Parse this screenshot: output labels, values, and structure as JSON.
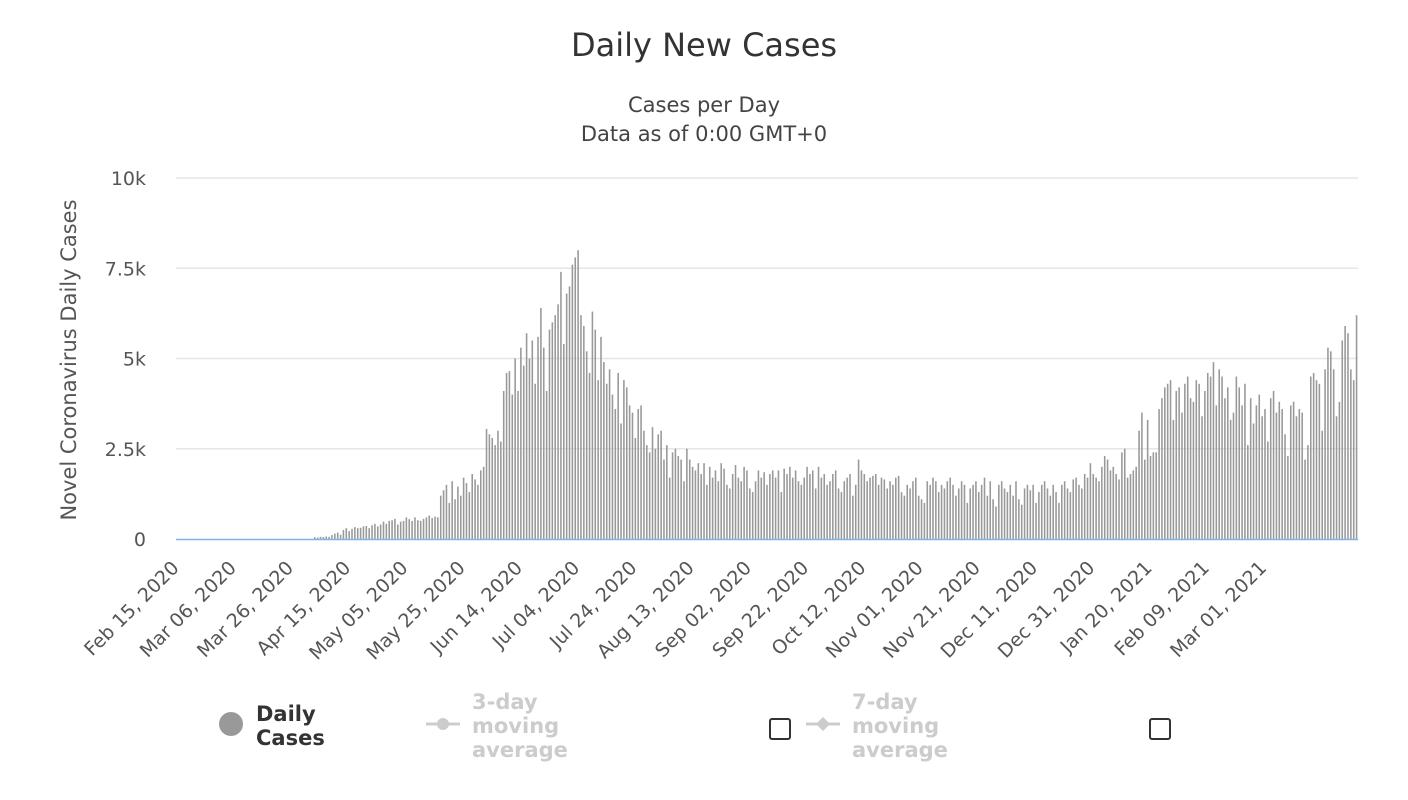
{
  "chart_data": {
    "type": "bar",
    "title": "Daily New Cases",
    "subtitle": [
      "Cases per Day",
      "Data as of 0:00 GMT+0"
    ],
    "ylabel": "Novel Coronavirus Daily Cases",
    "ylim": [
      0,
      10000
    ],
    "y_ticks": [
      {
        "value": 0,
        "label": "0"
      },
      {
        "value": 2500,
        "label": "2.5k"
      },
      {
        "value": 5000,
        "label": "5k"
      },
      {
        "value": 7500,
        "label": "7.5k"
      },
      {
        "value": 10000,
        "label": "10k"
      }
    ],
    "x_tick_labels": [
      "Feb 15, 2020",
      "Mar 06, 2020",
      "Mar 26, 2020",
      "Apr 15, 2020",
      "May 05, 2020",
      "May 25, 2020",
      "Jun 14, 2020",
      "Jul 04, 2020",
      "Jul 24, 2020",
      "Aug 13, 2020",
      "Sep 02, 2020",
      "Sep 22, 2020",
      "Oct 12, 2020",
      "Nov 01, 2020",
      "Nov 21, 2020",
      "Dec 11, 2020",
      "Dec 31, 2020",
      "Jan 20, 2021",
      "Feb 09, 2021",
      "Mar 01, 2021"
    ],
    "x_start": "Feb 15, 2020",
    "x_end": "Mar 21, 2021",
    "grid": true,
    "legend_position": "bottom",
    "colors": {
      "bars": "#999999",
      "zero_line": "#7cb5ec",
      "grid": "#e6e6e6"
    },
    "series": [
      {
        "name": "Daily Cases",
        "values": [
          0,
          0,
          0,
          0,
          0,
          0,
          0,
          0,
          0,
          0,
          0,
          0,
          0,
          0,
          0,
          0,
          0,
          0,
          0,
          0,
          0,
          0,
          0,
          0,
          0,
          0,
          0,
          0,
          0,
          0,
          0,
          0,
          0,
          0,
          0,
          0,
          0,
          0,
          0,
          0,
          0,
          0,
          0,
          0,
          0,
          0,
          0,
          0,
          50,
          40,
          60,
          55,
          70,
          60,
          110,
          150,
          180,
          120,
          250,
          300,
          220,
          280,
          330,
          300,
          310,
          350,
          360,
          300,
          380,
          420,
          350,
          400,
          480,
          420,
          500,
          520,
          560,
          400,
          480,
          500,
          600,
          550,
          500,
          600,
          520,
          500,
          560,
          600,
          650,
          580,
          620,
          600,
          1200,
          1350,
          1500,
          1000,
          1600,
          1100,
          1450,
          1200,
          1700,
          1550,
          1300,
          1800,
          1650,
          1500,
          1900,
          2000,
          3050,
          2900,
          2800,
          2600,
          3000,
          2700,
          4100,
          4600,
          4650,
          4000,
          5000,
          4100,
          5300,
          4800,
          5700,
          5000,
          5500,
          4300,
          5600,
          6400,
          5300,
          4100,
          5800,
          6000,
          6200,
          6500,
          7400,
          5400,
          6800,
          7000,
          7600,
          7800,
          8000,
          6200,
          5900,
          5200,
          4600,
          6300,
          5800,
          4400,
          5600,
          4900,
          4300,
          4700,
          4000,
          3600,
          4600,
          3200,
          4400,
          4200,
          3700,
          3500,
          2800,
          3600,
          3700,
          3000,
          2600,
          2400,
          3100,
          2500,
          2900,
          3000,
          2200,
          2600,
          1700,
          2400,
          2500,
          2300,
          2200,
          1600,
          2500,
          2200,
          2000,
          1900,
          2100,
          1800,
          2100,
          1500,
          2000,
          1700,
          1900,
          1600,
          2100,
          1950,
          1500,
          1400,
          1800,
          2050,
          1700,
          1600,
          2000,
          1900,
          1400,
          1300,
          1600,
          1900,
          1700,
          1850,
          1500,
          1800,
          1900,
          1700,
          1900,
          1300,
          1950,
          1800,
          2000,
          1700,
          1900,
          1600,
          1500,
          1700,
          2000,
          1800,
          1900,
          1400,
          2000,
          1700,
          1800,
          1500,
          1600,
          1800,
          1900,
          1400,
          1300,
          1600,
          1700,
          1800,
          1200,
          1500,
          2200,
          1900,
          1800,
          1600,
          1700,
          1750,
          1800,
          1500,
          1700,
          1650,
          1400,
          1600,
          1500,
          1700,
          1750,
          1300,
          1200,
          1500,
          1400,
          1600,
          1700,
          1200,
          1100,
          1000,
          1600,
          1500,
          1700,
          1600,
          1300,
          1500,
          1400,
          1600,
          1700,
          1500,
          1200,
          1400,
          1600,
          1500,
          1000,
          1400,
          1500,
          1600,
          1300,
          1500,
          1700,
          1200,
          1600,
          1100,
          900,
          1500,
          1600,
          1400,
          1300,
          1500,
          1200,
          1600,
          1100,
          950,
          1400,
          1500,
          1350,
          1500,
          1000,
          1300,
          1500,
          1600,
          1400,
          1200,
          1500,
          1300,
          1000,
          1500,
          1600,
          1400,
          1300,
          1650,
          1700,
          1500,
          1400,
          1800,
          1700,
          2100,
          1800,
          1700,
          1600,
          2000,
          2300,
          2200,
          1900,
          2000,
          1800,
          1650,
          2400,
          2500,
          1700,
          1800,
          1900,
          2000,
          3000,
          3500,
          2200,
          3300,
          2300,
          2400,
          2400,
          3600,
          3900,
          4200,
          4300,
          4400,
          3300,
          4100,
          4200,
          3500,
          4300,
          4500,
          3900,
          3800,
          4400,
          4300,
          3400,
          4100,
          4600,
          4500,
          4900,
          3700,
          4700,
          4500,
          3900,
          4200,
          3300,
          3500,
          4500,
          4200,
          3700,
          4300,
          2600,
          3900,
          3200,
          3700,
          4000,
          3400,
          3600,
          2700,
          3900,
          4100,
          3500,
          3800,
          3600,
          2900,
          2300,
          3700,
          3800,
          3400,
          3600,
          3500,
          2200,
          2600,
          4500,
          4600,
          4400,
          4300,
          3000,
          4700,
          5300,
          5200,
          4700,
          3400,
          3800,
          5500,
          5900,
          5700,
          4700,
          4400,
          6200
        ]
      }
    ]
  },
  "legend": {
    "items": [
      {
        "label": "Daily Cases",
        "active": true
      },
      {
        "label": "3-day moving average",
        "active": false
      },
      {
        "label": "7-day moving average",
        "active": false
      }
    ]
  }
}
